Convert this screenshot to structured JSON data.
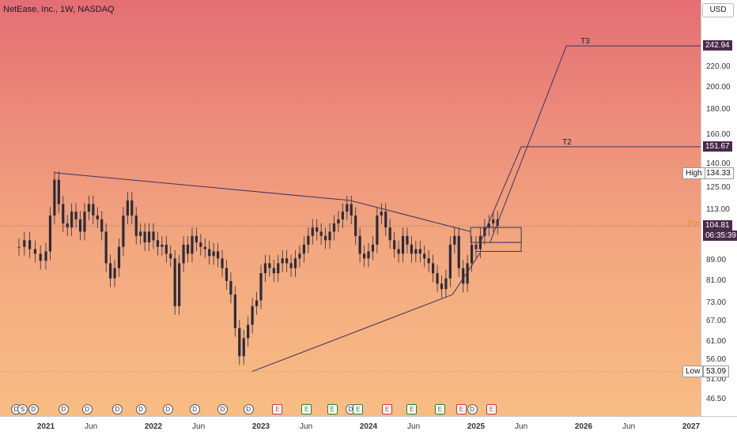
{
  "title": "NetEase, Inc., 1W, NASDAQ",
  "currency": "USD",
  "colors": {
    "line": "#3b3360",
    "candle": "#2b2b3a",
    "tag": "#4a2a4a"
  },
  "chart_data": {
    "type": "candlestick",
    "title": "NetEase, Inc., 1W, NASDAQ",
    "y_ticks": [
      "220.00",
      "200.00",
      "180.00",
      "160.00",
      "140.00",
      "125.00",
      "113.00",
      "89.00",
      "81.00",
      "73.00",
      "67.00",
      "61.00",
      "56.00",
      "51.00",
      "46.50"
    ],
    "x_labels": [
      {
        "label": "2021",
        "year": true,
        "x": 2021.0
      },
      {
        "label": "Jun",
        "year": false,
        "x": 2021.42
      },
      {
        "label": "2022",
        "year": true,
        "x": 2022.0
      },
      {
        "label": "Jun",
        "year": false,
        "x": 2022.42
      },
      {
        "label": "2023",
        "year": true,
        "x": 2023.0
      },
      {
        "label": "Jun",
        "year": false,
        "x": 2023.42
      },
      {
        "label": "2024",
        "year": true,
        "x": 2024.0
      },
      {
        "label": "Jun",
        "year": false,
        "x": 2024.42
      },
      {
        "label": "2025",
        "year": true,
        "x": 2025.0
      },
      {
        "label": "Jun",
        "year": false,
        "x": 2025.42
      },
      {
        "label": "2026",
        "year": true,
        "x": 2026.0
      },
      {
        "label": "Jun",
        "year": false,
        "x": 2026.42
      },
      {
        "label": "2027",
        "year": true,
        "x": 2027.0
      }
    ],
    "price_tags": [
      {
        "label": "",
        "value": "242.94",
        "price": 242.94,
        "style": "dark"
      },
      {
        "label": "",
        "value": "151.67",
        "price": 151.67,
        "style": "dark"
      },
      {
        "label": "High",
        "value": "134.33",
        "price": 134.33,
        "style": "light"
      },
      {
        "label": "Pre",
        "value": "105.60",
        "price": 105.6,
        "style": "orange"
      },
      {
        "label": "",
        "value": "104.81",
        "price": 104.81,
        "style": "dark",
        "sub": "06:35:39"
      },
      {
        "label": "Low",
        "value": "53.09",
        "price": 53.09,
        "style": "light"
      }
    ],
    "targets": [
      {
        "name": "T3",
        "price": 242.94
      },
      {
        "name": "T2",
        "price": 151.67
      }
    ],
    "trendlines": [
      {
        "from": [
          2021.08,
          134.33
        ],
        "to": [
          2023.83,
          118.0
        ]
      },
      {
        "from": [
          2023.83,
          118.0
        ],
        "to": [
          2024.95,
          102.0
        ]
      },
      {
        "from": [
          2022.92,
          53.09
        ],
        "to": [
          2024.78,
          76.0
        ]
      },
      {
        "from": [
          2024.78,
          76.0
        ],
        "to": [
          2025.04,
          92.5
        ]
      }
    ],
    "projection": [
      {
        "from": [
          2025.04,
          97.0
        ],
        "to": [
          2025.42,
          151.67
        ]
      },
      {
        "from": [
          2025.13,
          97.0
        ],
        "to": [
          2025.84,
          242.94
        ]
      }
    ],
    "boxes": [
      {
        "x0": 2024.95,
        "x1": 2025.42,
        "y0": 97.0,
        "y1": 104.0
      },
      {
        "x0": 2025.0,
        "x1": 2025.42,
        "y0": 93.0,
        "y1": 97.0
      }
    ],
    "dotted_price": 104.81,
    "candles_approx": [
      [
        2020.75,
        95
      ],
      [
        2020.8,
        98
      ],
      [
        2020.85,
        94
      ],
      [
        2020.9,
        92
      ],
      [
        2020.95,
        89
      ],
      [
        2021.0,
        93
      ],
      [
        2021.04,
        110
      ],
      [
        2021.08,
        130
      ],
      [
        2021.12,
        116
      ],
      [
        2021.16,
        106
      ],
      [
        2021.2,
        104
      ],
      [
        2021.24,
        112
      ],
      [
        2021.28,
        108
      ],
      [
        2021.32,
        102
      ],
      [
        2021.36,
        112
      ],
      [
        2021.4,
        116
      ],
      [
        2021.44,
        110
      ],
      [
        2021.48,
        108
      ],
      [
        2021.52,
        102
      ],
      [
        2021.56,
        88
      ],
      [
        2021.6,
        82
      ],
      [
        2021.64,
        86
      ],
      [
        2021.68,
        95
      ],
      [
        2021.72,
        110
      ],
      [
        2021.76,
        118
      ],
      [
        2021.8,
        110
      ],
      [
        2021.84,
        100
      ],
      [
        2021.88,
        102
      ],
      [
        2021.92,
        97
      ],
      [
        2021.96,
        102
      ],
      [
        2022.0,
        98
      ],
      [
        2022.04,
        95
      ],
      [
        2022.08,
        96
      ],
      [
        2022.12,
        92
      ],
      [
        2022.16,
        90
      ],
      [
        2022.2,
        72
      ],
      [
        2022.24,
        88
      ],
      [
        2022.28,
        96
      ],
      [
        2022.32,
        92
      ],
      [
        2022.36,
        100
      ],
      [
        2022.4,
        97
      ],
      [
        2022.44,
        95
      ],
      [
        2022.48,
        94
      ],
      [
        2022.52,
        91
      ],
      [
        2022.56,
        93
      ],
      [
        2022.6,
        90
      ],
      [
        2022.64,
        86
      ],
      [
        2022.68,
        81
      ],
      [
        2022.72,
        76
      ],
      [
        2022.76,
        65
      ],
      [
        2022.8,
        57
      ],
      [
        2022.84,
        62
      ],
      [
        2022.88,
        66
      ],
      [
        2022.92,
        72
      ],
      [
        2022.96,
        74
      ],
      [
        2023.0,
        84
      ],
      [
        2023.04,
        88
      ],
      [
        2023.08,
        86
      ],
      [
        2023.12,
        84
      ],
      [
        2023.16,
        88
      ],
      [
        2023.2,
        90
      ],
      [
        2023.24,
        88
      ],
      [
        2023.28,
        86
      ],
      [
        2023.32,
        90
      ],
      [
        2023.36,
        92
      ],
      [
        2023.4,
        96
      ],
      [
        2023.44,
        100
      ],
      [
        2023.48,
        104
      ],
      [
        2023.52,
        102
      ],
      [
        2023.56,
        100
      ],
      [
        2023.6,
        98
      ],
      [
        2023.64,
        102
      ],
      [
        2023.68,
        106
      ],
      [
        2023.72,
        108
      ],
      [
        2023.76,
        112
      ],
      [
        2023.8,
        116
      ],
      [
        2023.84,
        110
      ],
      [
        2023.88,
        100
      ],
      [
        2023.92,
        92
      ],
      [
        2023.96,
        90
      ],
      [
        2024.0,
        93
      ],
      [
        2024.04,
        96
      ],
      [
        2024.08,
        110
      ],
      [
        2024.12,
        112
      ],
      [
        2024.16,
        104
      ],
      [
        2024.2,
        98
      ],
      [
        2024.24,
        94
      ],
      [
        2024.28,
        92
      ],
      [
        2024.32,
        100
      ],
      [
        2024.36,
        96
      ],
      [
        2024.4,
        92
      ],
      [
        2024.44,
        94
      ],
      [
        2024.48,
        92
      ],
      [
        2024.52,
        90
      ],
      [
        2024.56,
        88
      ],
      [
        2024.6,
        84
      ],
      [
        2024.64,
        80
      ],
      [
        2024.68,
        78
      ],
      [
        2024.72,
        82
      ],
      [
        2024.76,
        96
      ],
      [
        2024.8,
        100
      ],
      [
        2024.84,
        86
      ],
      [
        2024.88,
        80
      ],
      [
        2024.92,
        88
      ],
      [
        2024.96,
        96
      ],
      [
        2025.0,
        94
      ],
      [
        2025.04,
        100
      ],
      [
        2025.08,
        104
      ],
      [
        2025.12,
        106
      ],
      [
        2025.16,
        108
      ],
      [
        2025.2,
        104.81
      ]
    ],
    "events": [
      {
        "x": 2020.72,
        "t": "D",
        "k": "d"
      },
      {
        "x": 2020.78,
        "t": "S",
        "k": "d"
      },
      {
        "x": 2020.88,
        "t": "D",
        "k": "d"
      },
      {
        "x": 2021.16,
        "t": "D",
        "k": "d"
      },
      {
        "x": 2021.38,
        "t": "D",
        "k": "d"
      },
      {
        "x": 2021.66,
        "t": "D",
        "k": "d"
      },
      {
        "x": 2021.88,
        "t": "D",
        "k": "d"
      },
      {
        "x": 2022.13,
        "t": "D",
        "k": "d"
      },
      {
        "x": 2022.38,
        "t": "D",
        "k": "d"
      },
      {
        "x": 2022.64,
        "t": "D",
        "k": "d"
      },
      {
        "x": 2022.88,
        "t": "D",
        "k": "d"
      },
      {
        "x": 2023.15,
        "t": "E",
        "k": "e"
      },
      {
        "x": 2023.42,
        "t": "E",
        "k": "eg"
      },
      {
        "x": 2023.66,
        "t": "E",
        "k": "eg"
      },
      {
        "x": 2023.83,
        "t": "D",
        "k": "d"
      },
      {
        "x": 2023.9,
        "t": "E",
        "k": "eg"
      },
      {
        "x": 2024.17,
        "t": "E",
        "k": "e"
      },
      {
        "x": 2024.4,
        "t": "E",
        "k": "eg"
      },
      {
        "x": 2024.66,
        "t": "E",
        "k": "eg"
      },
      {
        "x": 2024.86,
        "t": "E",
        "k": "e"
      },
      {
        "x": 2024.96,
        "t": "D",
        "k": "d"
      },
      {
        "x": 2025.14,
        "t": "E",
        "k": "e"
      }
    ]
  }
}
